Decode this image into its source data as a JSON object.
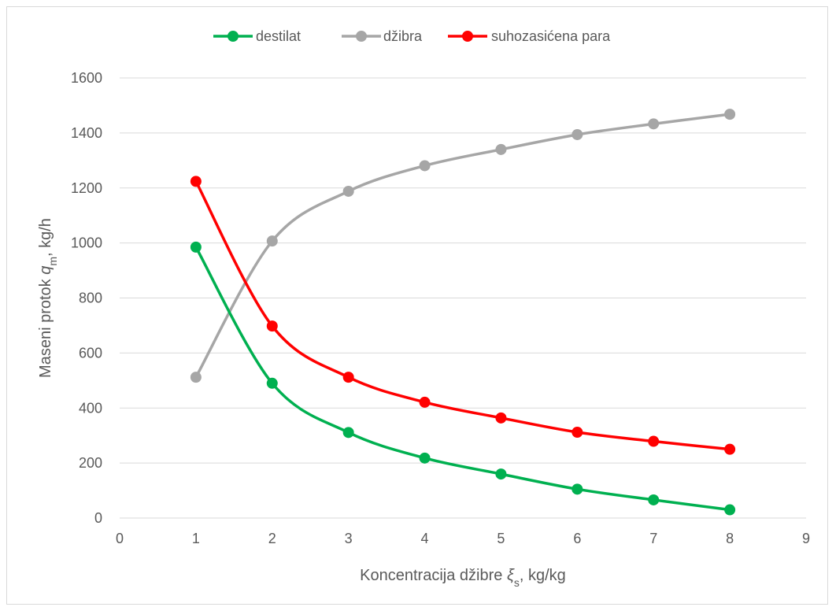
{
  "chart_data": {
    "type": "line",
    "smooth": true,
    "markers": "circle",
    "grid": "horizontal",
    "legend_position": "top",
    "xlabel_main": "Koncentracija džibre ",
    "xlabel_symbol": "ξ",
    "xlabel_subscript": "s",
    "xlabel_unit": ", kg/kg",
    "ylabel_main": "Maseni protok ",
    "ylabel_symbol": "q",
    "ylabel_subscript": "m",
    "ylabel_unit": ", kg/h",
    "xlim": [
      0,
      9
    ],
    "ylim": [
      0,
      1600
    ],
    "x_ticks": [
      0,
      1,
      2,
      3,
      4,
      5,
      6,
      7,
      8,
      9
    ],
    "y_ticks": [
      0,
      200,
      400,
      600,
      800,
      1000,
      1200,
      1400,
      1600
    ],
    "x": [
      1,
      2,
      3,
      4,
      5,
      6,
      7,
      8
    ],
    "series": [
      {
        "name": "destilat",
        "color": "#00b050",
        "values": [
          985,
          490,
          311,
          218,
          160,
          105,
          66,
          30
        ]
      },
      {
        "name": "džibra",
        "color": "#a6a6a6",
        "values": [
          512,
          1007,
          1188,
          1281,
          1340,
          1394,
          1433,
          1468
        ]
      },
      {
        "name": "suhozasićena para",
        "color": "#ff0000",
        "values": [
          1224,
          698,
          512,
          421,
          364,
          312,
          279,
          250
        ]
      }
    ],
    "colors": {
      "grid": "#d9d9d9",
      "tick_text": "#595959",
      "frame": "#d9d9d9"
    }
  }
}
